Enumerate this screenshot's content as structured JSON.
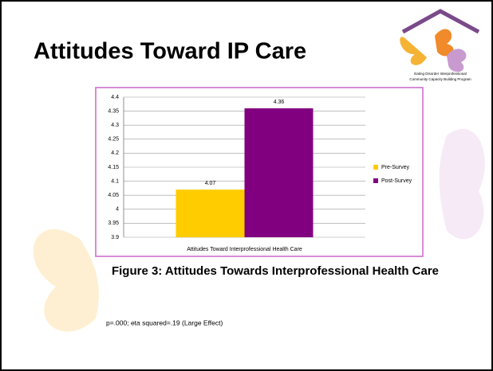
{
  "slide": {
    "title": "Attitudes Toward IP Care",
    "logo_text": [
      "Eating Disorder Interprofessional",
      "Community Capacity Building Program"
    ],
    "caption": "Figure 3: Attitudes Towards Interprofessional Health Care",
    "note": "p=.000; eta squared=.19 (Large Effect)"
  },
  "chart_data": {
    "type": "bar",
    "categories": [
      "Attitudes Toward Interprofessional Health Care"
    ],
    "series": [
      {
        "name": "Pre-Survey",
        "color": "#ffcc00",
        "values": [
          4.07
        ]
      },
      {
        "name": "Post-Survey",
        "color": "#800080",
        "values": [
          4.36
        ]
      }
    ],
    "ylim": [
      3.9,
      4.4
    ],
    "yticks": [
      3.9,
      3.95,
      4,
      4.05,
      4.1,
      4.15,
      4.2,
      4.25,
      4.3,
      4.35,
      4.4
    ],
    "grid": true,
    "legend": "right"
  }
}
